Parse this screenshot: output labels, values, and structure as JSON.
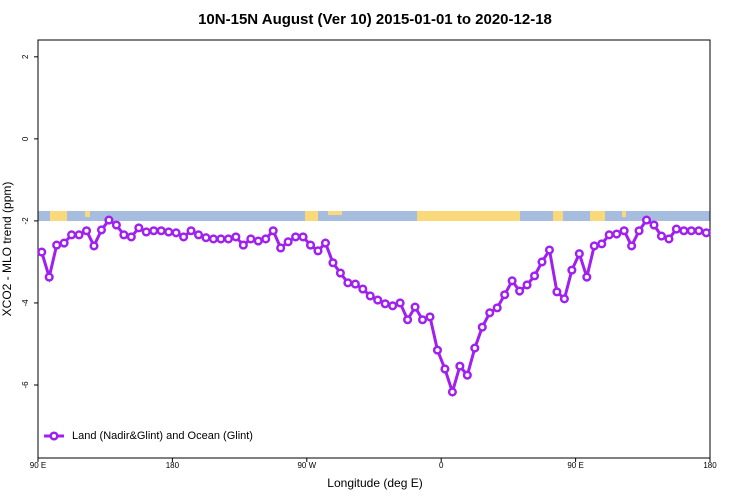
{
  "chart_data": {
    "type": "line",
    "title": "10N-15N August (Ver 10)   2015-01-01 to 2020-12-18",
    "x_label": "Longitude (deg E)",
    "y_label": "XCO2 - MLO trend (ppm)",
    "x": [
      92.5,
      97.5,
      102.5,
      107.5,
      112.5,
      117.5,
      122.5,
      127.5,
      132.5,
      137.5,
      142.5,
      147.5,
      152.5,
      157.5,
      162.5,
      167.5,
      172.5,
      177.5,
      182.5,
      187.5,
      192.5,
      197.5,
      202.5,
      207.5,
      212.5,
      217.5,
      222.5,
      227.5,
      232.5,
      237.5,
      242.5,
      247.5,
      252.5,
      257.5,
      262.5,
      267.5,
      272.5,
      277.5,
      282.5,
      287.5,
      292.5,
      297.5,
      302.5,
      307.5,
      312.5,
      317.5,
      322.5,
      327.5,
      332.5,
      337.5,
      342.5,
      347.5,
      352.5,
      357.5,
      362.5,
      367.5,
      372.5,
      377.5,
      382.5,
      387.5,
      392.5,
      397.5,
      402.5,
      407.5,
      412.5,
      417.5,
      422.5,
      427.5,
      432.5,
      437.5,
      442.5,
      447.5,
      452.5,
      457.5,
      462.5,
      467.5,
      472.5,
      477.5,
      482.5,
      487.5,
      492.5,
      497.5,
      502.5,
      507.5,
      512.5,
      517.5,
      522.5,
      527.5,
      532.5,
      537.5
    ],
    "series": [
      {
        "name": "Land (Nadir&Glint) and Ocean (Glint)",
        "color": "#a020f0",
        "values": [
          -2.76,
          -3.37,
          -2.59,
          -2.54,
          -2.34,
          -2.34,
          -2.24,
          -2.61,
          -2.22,
          -1.98,
          -2.1,
          -2.34,
          -2.39,
          -2.17,
          -2.27,
          -2.24,
          -2.24,
          -2.27,
          -2.29,
          -2.39,
          -2.24,
          -2.34,
          -2.41,
          -2.44,
          -2.44,
          -2.44,
          -2.39,
          -2.59,
          -2.44,
          -2.49,
          -2.44,
          -2.24,
          -2.66,
          -2.51,
          -2.39,
          -2.39,
          -2.59,
          -2.73,
          -2.54,
          -3.02,
          -3.27,
          -3.51,
          -3.54,
          -3.66,
          -3.83,
          -3.93,
          -4.02,
          -4.07,
          -4.0,
          -4.41,
          -4.1,
          -4.41,
          -4.34,
          -5.15,
          -5.61,
          -6.17,
          -5.54,
          -5.76,
          -5.1,
          -4.59,
          -4.24,
          -4.12,
          -3.8,
          -3.46,
          -3.71,
          -3.56,
          -3.34,
          -3.0,
          -2.71,
          -3.73,
          -3.9,
          -3.2,
          -2.8,
          -3.37,
          -2.61,
          -2.56,
          -2.34,
          -2.32,
          -2.24,
          -2.61,
          -2.24,
          -1.98,
          -2.1,
          -2.37,
          -2.44,
          -2.2,
          -2.24,
          -2.24,
          -2.24,
          -2.29
        ]
      }
    ],
    "xlim": [
      90,
      540
    ],
    "xticks": [
      {
        "value": 90,
        "label": "90 E"
      },
      {
        "value": 180,
        "label": "180"
      },
      {
        "value": 270,
        "label": "90 W"
      },
      {
        "value": 360,
        "label": "0"
      },
      {
        "value": 450,
        "label": "90 E"
      },
      {
        "value": 540,
        "label": "180"
      }
    ],
    "ylim": [
      -7.78,
      2.41
    ],
    "yticks": [
      -6,
      -4,
      -2,
      0,
      2
    ],
    "legend": "bottom-left"
  }
}
